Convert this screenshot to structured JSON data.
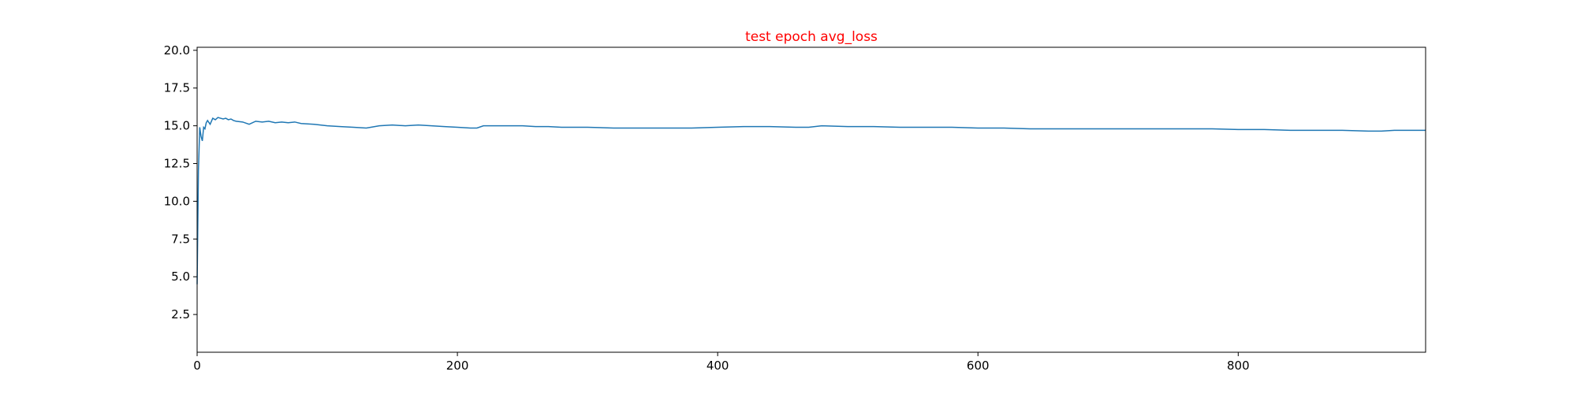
{
  "chart_data": {
    "type": "line",
    "title": "test epoch avg_loss",
    "title_color": "#ff0000",
    "xlabel": "",
    "ylabel": "",
    "xlim": [
      0,
      944
    ],
    "ylim": [
      0,
      20.2
    ],
    "x_ticks": [
      0,
      200,
      400,
      600,
      800
    ],
    "y_ticks": [
      2.5,
      5.0,
      7.5,
      10.0,
      12.5,
      15.0,
      17.5,
      20.0
    ],
    "x_tick_labels": [
      "0",
      "200",
      "400",
      "600",
      "800"
    ],
    "y_tick_labels": [
      "2.5",
      "5.0",
      "7.5",
      "10.0",
      "12.5",
      "15.0",
      "17.5",
      "20.0"
    ],
    "grid": false,
    "series_color": "#1f77b4",
    "series": [
      {
        "x": [
          0,
          1,
          2,
          3,
          4,
          5,
          6,
          7,
          8,
          10,
          12,
          14,
          16,
          18,
          20,
          22,
          24,
          26,
          28,
          30,
          35,
          40,
          45,
          50,
          55,
          60,
          65,
          70,
          75,
          80,
          90,
          100,
          110,
          120,
          130,
          140,
          150,
          160,
          170,
          180,
          190,
          200,
          210,
          215,
          220,
          230,
          240,
          250,
          260,
          270,
          280,
          300,
          320,
          340,
          360,
          380,
          400,
          420,
          440,
          460,
          470,
          480,
          500,
          520,
          540,
          560,
          580,
          600,
          620,
          640,
          660,
          680,
          700,
          720,
          740,
          760,
          780,
          800,
          820,
          840,
          860,
          880,
          900,
          910,
          920,
          944
        ],
        "y": [
          4.5,
          12.0,
          14.9,
          14.3,
          14.0,
          14.9,
          14.8,
          15.2,
          15.35,
          15.1,
          15.5,
          15.4,
          15.55,
          15.5,
          15.45,
          15.5,
          15.4,
          15.45,
          15.35,
          15.3,
          15.25,
          15.1,
          15.3,
          15.25,
          15.3,
          15.2,
          15.25,
          15.2,
          15.25,
          15.15,
          15.1,
          15.0,
          14.95,
          14.9,
          14.85,
          15.0,
          15.05,
          15.0,
          15.05,
          15.0,
          14.95,
          14.9,
          14.85,
          14.85,
          15.0,
          15.0,
          15.0,
          15.0,
          14.95,
          14.95,
          14.9,
          14.9,
          14.85,
          14.85,
          14.85,
          14.85,
          14.9,
          14.95,
          14.95,
          14.9,
          14.9,
          15.0,
          14.95,
          14.95,
          14.9,
          14.9,
          14.9,
          14.85,
          14.85,
          14.8,
          14.8,
          14.8,
          14.8,
          14.8,
          14.8,
          14.8,
          14.8,
          14.75,
          14.75,
          14.7,
          14.7,
          14.7,
          14.65,
          14.65,
          14.7,
          14.7
        ]
      }
    ]
  }
}
